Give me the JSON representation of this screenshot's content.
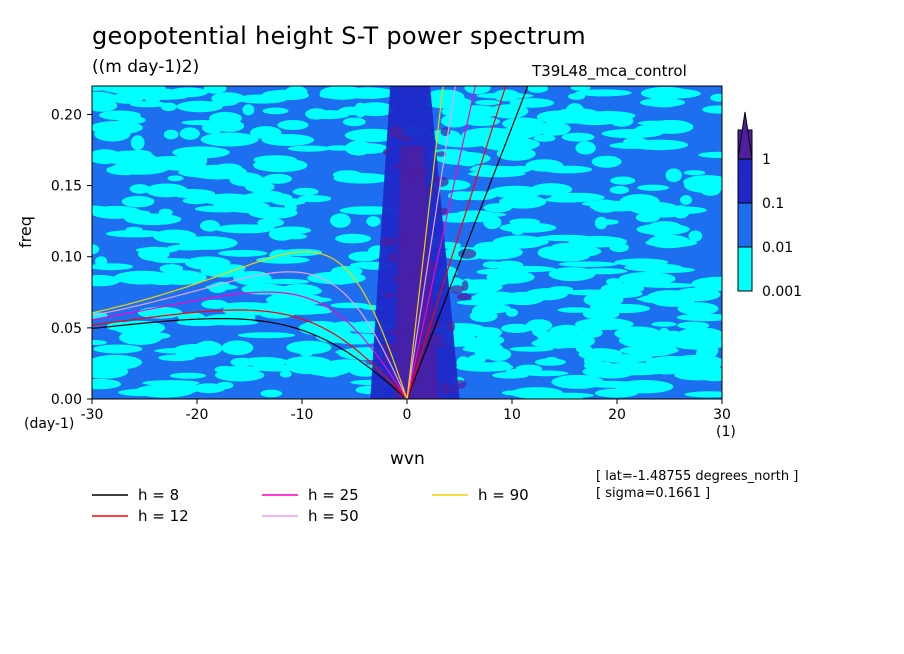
{
  "header": {
    "title": "geopotential height S-T power spectrum",
    "units": "((m day-1)2)",
    "run_name": "T39L48_mca_control"
  },
  "info": {
    "lat": "[ lat=-1.48755 degrees_north ]",
    "sigma": "[ sigma=0.1661 ]"
  },
  "colorbar": {
    "levels": [
      "0.001",
      "0.01",
      "0.1",
      "1"
    ],
    "colors": [
      "#00ffff",
      "#1e6ef0",
      "#1e28c8",
      "#501ea0"
    ]
  },
  "chart_data": {
    "type": "heatmap",
    "title": "geopotential height S-T power spectrum",
    "subtitle": "((m day-1)2)",
    "xlabel": "wvn",
    "ylabel": "freq",
    "x_unit": "(1)",
    "y_unit": "(day-1)",
    "xlim": [
      -30,
      30
    ],
    "ylim": [
      0,
      0.22
    ],
    "x_ticks": [
      "-30",
      "-20",
      "-10",
      "0",
      "10",
      "20",
      "30"
    ],
    "y_ticks": [
      "0.00",
      "0.05",
      "0.10",
      "0.15",
      "0.20"
    ],
    "background_color": "#1e6ef0",
    "dispersion_curves": [
      {
        "name": "h =  8",
        "h": 8,
        "color": "#000000"
      },
      {
        "name": "h = 12",
        "h": 12,
        "color": "#ff0000"
      },
      {
        "name": "h = 25",
        "h": 25,
        "color": "#ff00c8"
      },
      {
        "name": "h = 50",
        "h": 50,
        "color": "#e8a0f0"
      },
      {
        "name": "h = 90",
        "h": 90,
        "color": "#f0d200"
      }
    ]
  }
}
